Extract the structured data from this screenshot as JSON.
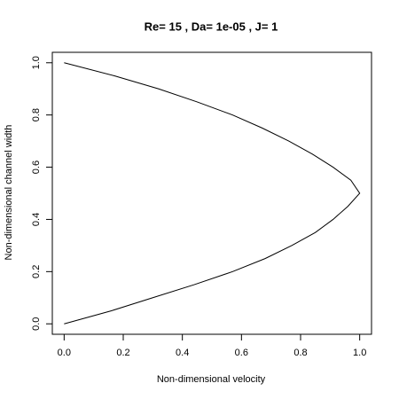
{
  "chart_data": {
    "type": "line",
    "title": "Re= 15 , Da= 1e-05 , J= 1",
    "x_label": "Non-dimensional velocity",
    "y_label": "Non-dimensional channel width",
    "x": [
      0,
      0.16,
      0.3,
      0.44,
      0.57,
      0.68,
      0.77,
      0.85,
      0.91,
      0.96,
      1.0,
      0.97,
      0.91,
      0.84,
      0.76,
      0.67,
      0.57,
      0.45,
      0.32,
      0.17,
      0
    ],
    "y": [
      0,
      0.05,
      0.1,
      0.15,
      0.2,
      0.25,
      0.3,
      0.35,
      0.4,
      0.45,
      0.5,
      0.55,
      0.6,
      0.65,
      0.7,
      0.75,
      0.8,
      0.85,
      0.9,
      0.95,
      1.0
    ],
    "color": "#000000",
    "xlim": [
      -0.04,
      1.04
    ],
    "ylim": [
      -0.04,
      1.04
    ],
    "xticks": [
      {
        "value": 0,
        "label": "0.0"
      },
      0.2,
      0.4,
      0.6,
      0.8,
      {
        "value": 1,
        "label": "1.0"
      }
    ],
    "yticks": [
      {
        "value": 0,
        "label": "0.0"
      },
      0.2,
      0.4,
      0.6,
      0.8,
      {
        "value": 1,
        "label": "1.0"
      }
    ]
  }
}
